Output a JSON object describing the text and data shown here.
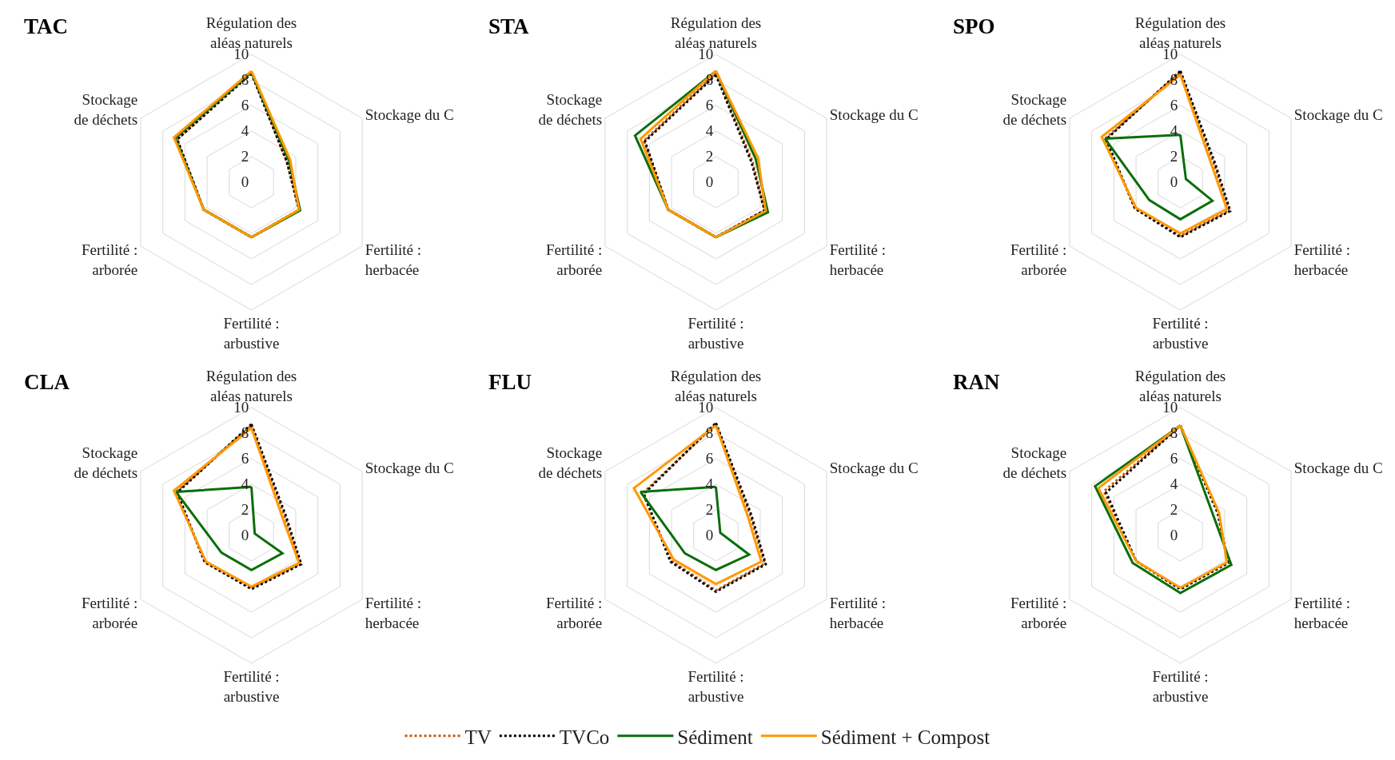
{
  "chart_data": [
    {
      "type": "radar",
      "title": "TAC",
      "categories": [
        "Régulation des aléas naturels",
        "Stockage du C",
        "Fertilité : herbacée",
        "Fertilité : arbustive",
        "Fertilité : arborée",
        "Stockage de déchets"
      ],
      "ylim": [
        0,
        10
      ],
      "yticks": [
        0,
        2,
        4,
        6,
        8,
        10
      ],
      "grid": true,
      "legend": "bottom",
      "series": [
        {
          "name": "TV",
          "color": "#c55a11",
          "line_style": "dotted",
          "values": [
            8.6,
            3.2,
            4.3,
            4.3,
            4.3,
            6.7
          ]
        },
        {
          "name": "TVCo",
          "color": "#000000",
          "line_style": "dotted",
          "values": [
            8.5,
            3.2,
            4.3,
            4.3,
            4.3,
            6.7
          ]
        },
        {
          "name": "Sédiment",
          "color": "#0b6e0b",
          "line_style": "solid",
          "values": [
            8.6,
            3.4,
            4.4,
            4.3,
            4.3,
            6.9
          ]
        },
        {
          "name": "Sédiment + Compost",
          "color": "#ff9900",
          "line_style": "solid",
          "values": [
            8.7,
            3.5,
            4.3,
            4.3,
            4.3,
            7.0
          ]
        }
      ]
    },
    {
      "type": "radar",
      "title": "STA",
      "categories": [
        "Régulation des aléas naturels",
        "Stockage du C",
        "Fertilité : herbacée",
        "Fertilité : arbustive",
        "Fertilité : arborée",
        "Stockage de déchets"
      ],
      "ylim": [
        0,
        10
      ],
      "yticks": [
        0,
        2,
        4,
        6,
        8,
        10
      ],
      "grid": true,
      "legend": "bottom",
      "series": [
        {
          "name": "TV",
          "color": "#c55a11",
          "line_style": "dotted",
          "values": [
            8.5,
            3.3,
            4.4,
            4.3,
            4.3,
            6.5
          ]
        },
        {
          "name": "TVCo",
          "color": "#000000",
          "line_style": "dotted",
          "values": [
            8.4,
            3.2,
            4.4,
            4.3,
            4.3,
            6.4
          ]
        },
        {
          "name": "Sédiment",
          "color": "#0b6e0b",
          "line_style": "solid",
          "values": [
            8.7,
            3.6,
            4.7,
            4.3,
            4.3,
            7.3
          ]
        },
        {
          "name": "Sédiment + Compost",
          "color": "#ff9900",
          "line_style": "solid",
          "values": [
            8.7,
            3.8,
            4.5,
            4.3,
            4.3,
            6.8
          ]
        }
      ]
    },
    {
      "type": "radar",
      "title": "SPO",
      "categories": [
        "Régulation des aléas naturels",
        "Stockage du C",
        "Fertilité : herbacée",
        "Fertilité : arbustive",
        "Fertilité : arborée",
        "Stockage de déchets"
      ],
      "ylim": [
        0,
        10
      ],
      "yticks": [
        0,
        2,
        4,
        6,
        8,
        10
      ],
      "grid": true,
      "legend": "bottom",
      "series": [
        {
          "name": "TV",
          "color": "#c55a11",
          "line_style": "dotted",
          "values": [
            8.6,
            3.0,
            4.4,
            4.2,
            4.1,
            6.8
          ]
        },
        {
          "name": "TVCo",
          "color": "#000000",
          "line_style": "dotted",
          "values": [
            8.7,
            3.1,
            4.5,
            4.3,
            4.1,
            6.7
          ]
        },
        {
          "name": "Sédiment",
          "color": "#0b6e0b",
          "line_style": "solid",
          "values": [
            3.7,
            0.5,
            2.9,
            2.9,
            2.8,
            6.8
          ]
        },
        {
          "name": "Sédiment + Compost",
          "color": "#ff9900",
          "line_style": "solid",
          "values": [
            8.4,
            2.8,
            4.2,
            4.0,
            4.0,
            7.1
          ]
        }
      ]
    },
    {
      "type": "radar",
      "title": "CLA",
      "categories": [
        "Régulation des aléas naturels",
        "Stockage du C",
        "Fertilité : herbacée",
        "Fertilité : arbustive",
        "Fertilité : arborée",
        "Stockage de déchets"
      ],
      "ylim": [
        0,
        10
      ],
      "yticks": [
        0,
        2,
        4,
        6,
        8,
        10
      ],
      "grid": true,
      "legend": "bottom",
      "series": [
        {
          "name": "TV",
          "color": "#c55a11",
          "line_style": "dotted",
          "values": [
            8.6,
            3.0,
            4.4,
            4.1,
            4.2,
            6.8
          ]
        },
        {
          "name": "TVCo",
          "color": "#000000",
          "line_style": "dotted",
          "values": [
            8.7,
            3.1,
            4.5,
            4.2,
            4.2,
            6.7
          ]
        },
        {
          "name": "Sédiment",
          "color": "#0b6e0b",
          "line_style": "solid",
          "values": [
            3.8,
            0.3,
            2.8,
            2.7,
            2.7,
            6.8
          ]
        },
        {
          "name": "Sédiment + Compost",
          "color": "#ff9900",
          "line_style": "solid",
          "values": [
            8.4,
            2.8,
            4.3,
            4.0,
            4.1,
            7.0
          ]
        }
      ]
    },
    {
      "type": "radar",
      "title": "FLU",
      "categories": [
        "Régulation des aléas naturels",
        "Stockage du C",
        "Fertilité : herbacée",
        "Fertilité : arbustive",
        "Fertilité : arborée",
        "Stockage de déchets"
      ],
      "ylim": [
        0,
        10
      ],
      "yticks": [
        0,
        2,
        4,
        6,
        8,
        10
      ],
      "grid": true,
      "legend": "bottom",
      "series": [
        {
          "name": "TV",
          "color": "#c55a11",
          "line_style": "dotted",
          "values": [
            8.7,
            3.1,
            4.4,
            4.3,
            4.0,
            6.6
          ]
        },
        {
          "name": "TVCo",
          "color": "#000000",
          "line_style": "dotted",
          "values": [
            8.8,
            3.2,
            4.5,
            4.4,
            4.1,
            6.5
          ]
        },
        {
          "name": "Sédiment",
          "color": "#0b6e0b",
          "line_style": "solid",
          "values": [
            3.8,
            0.4,
            3.0,
            2.7,
            2.8,
            6.8
          ]
        },
        {
          "name": "Sédiment + Compost",
          "color": "#ff9900",
          "line_style": "solid",
          "values": [
            8.6,
            2.9,
            4.1,
            3.8,
            3.8,
            7.4
          ]
        }
      ]
    },
    {
      "type": "radar",
      "title": "RAN",
      "categories": [
        "Régulation des aléas naturels",
        "Stockage du C",
        "Fertilité : herbacée",
        "Fertilité : arbustive",
        "Fertilité : arborée",
        "Stockage de déchets"
      ],
      "ylim": [
        0,
        10
      ],
      "yticks": [
        0,
        2,
        4,
        6,
        8,
        10
      ],
      "grid": true,
      "legend": "bottom",
      "series": [
        {
          "name": "TV",
          "color": "#c55a11",
          "line_style": "dotted",
          "values": [
            8.6,
            3.4,
            4.3,
            4.2,
            4.0,
            6.9
          ]
        },
        {
          "name": "TVCo",
          "color": "#000000",
          "line_style": "dotted",
          "values": [
            8.6,
            3.4,
            4.3,
            4.2,
            4.0,
            6.7
          ]
        },
        {
          "name": "Sédiment",
          "color": "#0b6e0b",
          "line_style": "solid",
          "values": [
            8.6,
            3.0,
            4.6,
            4.5,
            4.3,
            7.7
          ]
        },
        {
          "name": "Sédiment + Compost",
          "color": "#ff9900",
          "line_style": "solid",
          "values": [
            8.6,
            3.5,
            4.2,
            4.1,
            4.0,
            7.4
          ]
        }
      ]
    }
  ]
}
